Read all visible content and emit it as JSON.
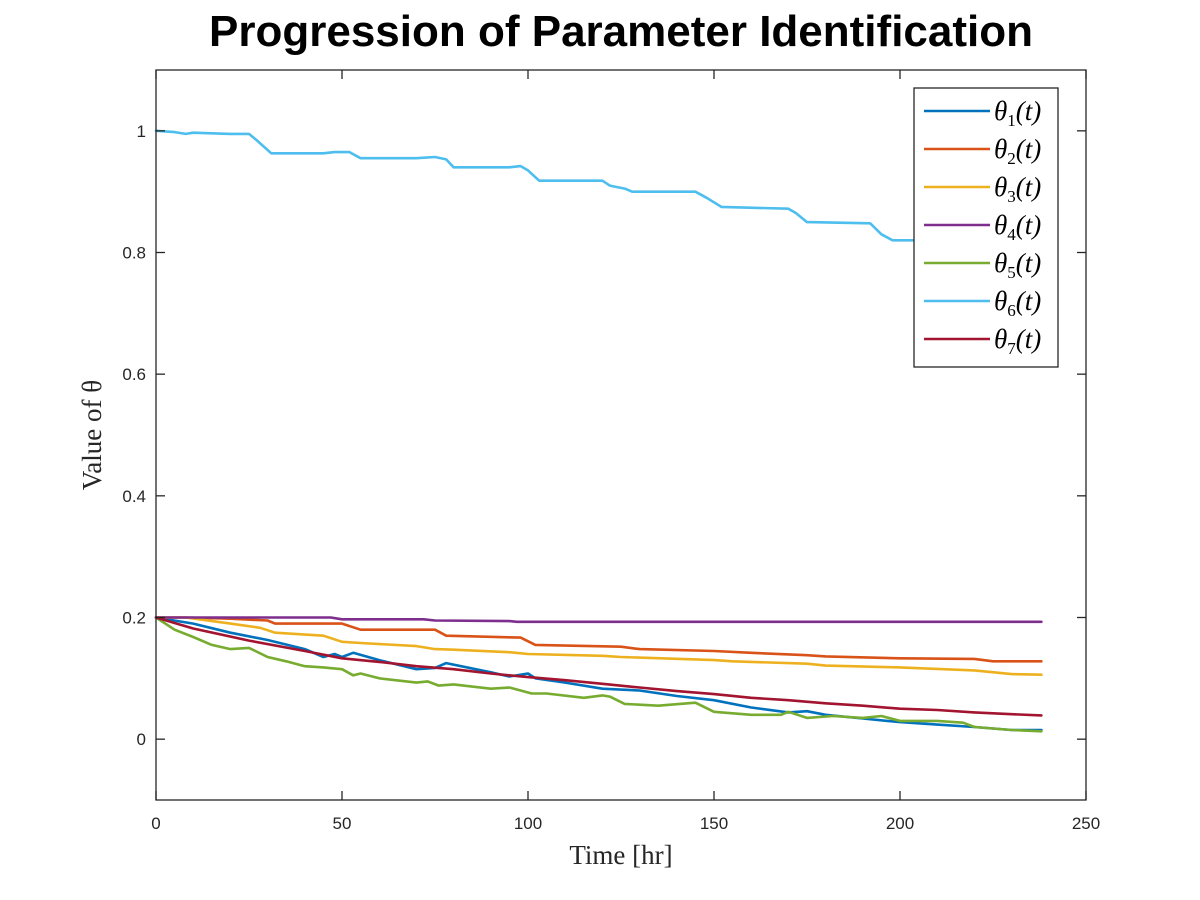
{
  "chart_data": {
    "type": "line",
    "title": "Progression of Parameter Identification",
    "xlabel": "Time [hr]",
    "ylabel": "Value of θ",
    "xlim": [
      0,
      250
    ],
    "ylim": [
      -0.1,
      1.1
    ],
    "xticks": [
      0,
      50,
      100,
      150,
      200,
      250
    ],
    "yticks": [
      0,
      0.2,
      0.4,
      0.6,
      0.8,
      1
    ],
    "xtick_labels": [
      "0",
      "50",
      "100",
      "150",
      "200",
      "250"
    ],
    "ytick_labels": [
      "0",
      "0.2",
      "0.4",
      "0.6",
      "0.8",
      "1"
    ],
    "grid": false,
    "legend_position": "top-right",
    "series": [
      {
        "name": "θ1(t)",
        "sub": "1",
        "color": "#0072BD",
        "x": [
          0,
          10,
          20,
          30,
          40,
          45,
          48,
          50,
          53,
          60,
          70,
          75,
          78,
          90,
          95,
          100,
          102,
          110,
          120,
          130,
          140,
          150,
          160,
          170,
          175,
          180,
          190,
          200,
          210,
          220,
          230,
          238
        ],
        "y": [
          0.2,
          0.19,
          0.175,
          0.163,
          0.148,
          0.135,
          0.14,
          0.135,
          0.142,
          0.13,
          0.115,
          0.117,
          0.125,
          0.11,
          0.103,
          0.108,
          0.1,
          0.093,
          0.083,
          0.08,
          0.071,
          0.064,
          0.052,
          0.044,
          0.046,
          0.04,
          0.034,
          0.028,
          0.024,
          0.02,
          0.015,
          0.015
        ]
      },
      {
        "name": "θ2(t)",
        "sub": "2",
        "color": "#D95319",
        "x": [
          0,
          8,
          20,
          30,
          32,
          50,
          55,
          75,
          78,
          98,
          102,
          125,
          130,
          150,
          160,
          175,
          180,
          200,
          220,
          225,
          238
        ],
        "y": [
          0.2,
          0.2,
          0.198,
          0.195,
          0.19,
          0.19,
          0.18,
          0.18,
          0.17,
          0.167,
          0.155,
          0.152,
          0.148,
          0.145,
          0.142,
          0.138,
          0.136,
          0.133,
          0.132,
          0.128,
          0.128
        ]
      },
      {
        "name": "θ3(t)",
        "sub": "3",
        "color": "#EDB120",
        "x": [
          0,
          8,
          20,
          28,
          32,
          45,
          50,
          55,
          70,
          75,
          80,
          95,
          100,
          120,
          125,
          150,
          155,
          175,
          180,
          200,
          220,
          230,
          238
        ],
        "y": [
          0.2,
          0.2,
          0.19,
          0.183,
          0.175,
          0.17,
          0.16,
          0.158,
          0.153,
          0.148,
          0.147,
          0.143,
          0.14,
          0.137,
          0.135,
          0.13,
          0.128,
          0.124,
          0.121,
          0.118,
          0.113,
          0.107,
          0.106
        ]
      },
      {
        "name": "θ4(t)",
        "sub": "4",
        "color": "#7E2F8E",
        "x": [
          0,
          10,
          30,
          47,
          50,
          72,
          75,
          95,
          97,
          120,
          150,
          200,
          238
        ],
        "y": [
          0.2,
          0.2,
          0.2,
          0.2,
          0.197,
          0.197,
          0.195,
          0.194,
          0.193,
          0.193,
          0.193,
          0.193,
          0.193
        ]
      },
      {
        "name": "θ5(t)",
        "sub": "5",
        "color": "#77AC30",
        "x": [
          0,
          5,
          10,
          15,
          20,
          25,
          30,
          35,
          40,
          45,
          50,
          53,
          55,
          60,
          70,
          73,
          76,
          80,
          90,
          95,
          98,
          101,
          105,
          115,
          120,
          122,
          126,
          135,
          145,
          150,
          160,
          168,
          170,
          175,
          182,
          190,
          195,
          200,
          210,
          217,
          220,
          230,
          238
        ],
        "y": [
          0.2,
          0.18,
          0.168,
          0.155,
          0.148,
          0.15,
          0.135,
          0.128,
          0.12,
          0.118,
          0.115,
          0.105,
          0.108,
          0.1,
          0.093,
          0.095,
          0.088,
          0.09,
          0.083,
          0.085,
          0.08,
          0.075,
          0.075,
          0.068,
          0.072,
          0.07,
          0.058,
          0.055,
          0.06,
          0.045,
          0.04,
          0.04,
          0.045,
          0.035,
          0.038,
          0.035,
          0.038,
          0.03,
          0.03,
          0.027,
          0.02,
          0.015,
          0.013
        ]
      },
      {
        "name": "θ6(t)",
        "sub": "6",
        "color": "#4DBEEE",
        "x": [
          0,
          5,
          8,
          10,
          20,
          25,
          27,
          31,
          40,
          45,
          48,
          52,
          55,
          70,
          75,
          78,
          80,
          95,
          98,
          100,
          103,
          120,
          122,
          126,
          128,
          145,
          148,
          152,
          170,
          172,
          175,
          192,
          195,
          198,
          200,
          210
        ],
        "y": [
          1.0,
          0.998,
          0.995,
          0.997,
          0.995,
          0.995,
          0.985,
          0.963,
          0.963,
          0.963,
          0.965,
          0.965,
          0.955,
          0.955,
          0.957,
          0.953,
          0.94,
          0.94,
          0.942,
          0.935,
          0.918,
          0.918,
          0.91,
          0.905,
          0.9,
          0.9,
          0.89,
          0.875,
          0.872,
          0.865,
          0.85,
          0.848,
          0.83,
          0.82,
          0.82,
          0.82
        ]
      },
      {
        "name": "θ7(t)",
        "sub": "7",
        "color": "#A2142F",
        "x": [
          0,
          10,
          25,
          40,
          50,
          60,
          70,
          80,
          90,
          100,
          110,
          120,
          130,
          140,
          150,
          160,
          170,
          180,
          190,
          200,
          210,
          220,
          230,
          238
        ],
        "y": [
          0.2,
          0.182,
          0.162,
          0.145,
          0.133,
          0.127,
          0.12,
          0.115,
          0.108,
          0.102,
          0.097,
          0.091,
          0.085,
          0.079,
          0.074,
          0.068,
          0.064,
          0.059,
          0.055,
          0.05,
          0.048,
          0.044,
          0.041,
          0.039
        ]
      }
    ]
  }
}
